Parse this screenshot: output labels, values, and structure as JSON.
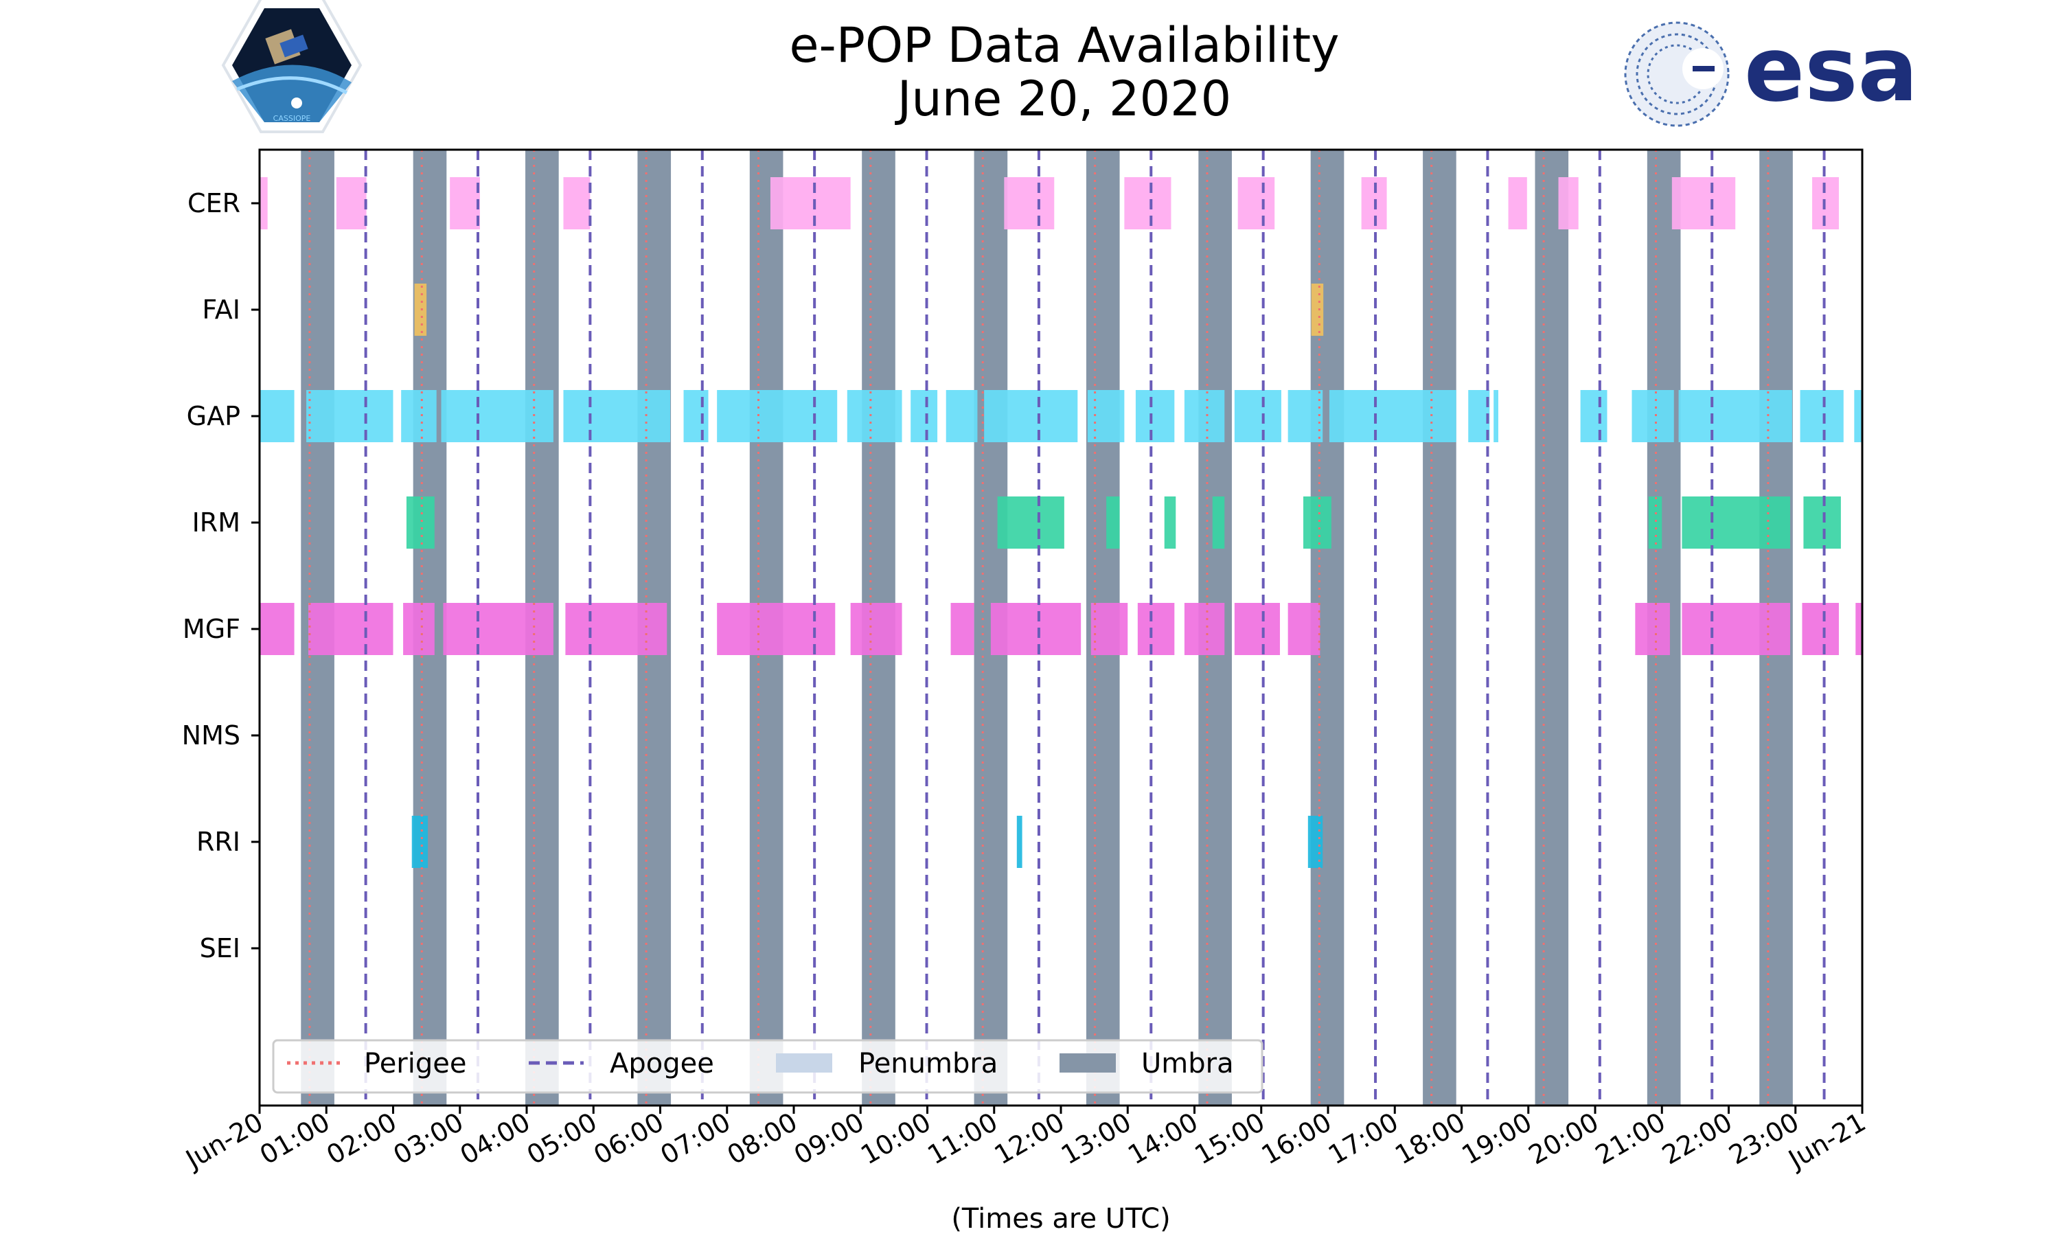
{
  "logos": {
    "left_mission": "CASSIOPE",
    "right_agency": "esa"
  },
  "chart_data": {
    "type": "timeline",
    "title": [
      "e-POP Data Availability",
      "June 20, 2020"
    ],
    "xlabel": "(Times are UTC)",
    "x_unit": "hours",
    "xlim": [
      0,
      24
    ],
    "x_ticks": [
      "Jun-20",
      "01:00",
      "02:00",
      "03:00",
      "04:00",
      "05:00",
      "06:00",
      "07:00",
      "08:00",
      "09:00",
      "10:00",
      "11:00",
      "12:00",
      "13:00",
      "14:00",
      "15:00",
      "16:00",
      "17:00",
      "18:00",
      "19:00",
      "20:00",
      "21:00",
      "22:00",
      "23:00",
      "Jun-21"
    ],
    "instruments": [
      "CER",
      "FAI",
      "GAP",
      "IRM",
      "MGF",
      "NMS",
      "RRI",
      "SEI"
    ],
    "colors": {
      "CER": "#ffaaf0",
      "FAI": "#f0c060",
      "GAP": "#66ddf8",
      "IRM": "#38d4a4",
      "MGF": "#f070e0",
      "NMS": "#999999",
      "RRI": "#20b8e0",
      "SEI": "#999999",
      "umbra": "#8595a7",
      "penumbra": "#c8d6e8",
      "perigee": "#f07070",
      "apogee": "#6a5cb8"
    },
    "umbra": [
      [
        0.62,
        1.12
      ],
      [
        2.3,
        2.8
      ],
      [
        3.98,
        4.48
      ],
      [
        5.66,
        6.16
      ],
      [
        7.34,
        7.84
      ],
      [
        9.02,
        9.52
      ],
      [
        10.7,
        11.2
      ],
      [
        12.38,
        12.88
      ],
      [
        14.06,
        14.56
      ],
      [
        15.74,
        16.24
      ],
      [
        17.42,
        17.92
      ],
      [
        19.1,
        19.6
      ],
      [
        20.78,
        21.28
      ],
      [
        22.46,
        22.96
      ]
    ],
    "perigee": [
      0.75,
      2.43,
      4.11,
      5.79,
      7.47,
      9.15,
      10.83,
      12.51,
      14.19,
      15.87,
      17.55,
      19.23,
      20.91,
      22.59
    ],
    "apogee": [
      1.59,
      3.27,
      4.95,
      6.63,
      8.31,
      9.99,
      11.67,
      13.35,
      15.03,
      16.71,
      18.39,
      20.07,
      21.75,
      23.43
    ],
    "intervals": {
      "CER": [
        [
          0,
          0.12
        ],
        [
          1.15,
          1.6
        ],
        [
          2.85,
          3.3
        ],
        [
          4.55,
          4.95
        ],
        [
          7.65,
          8.85
        ],
        [
          11.15,
          11.9
        ],
        [
          12.95,
          13.65
        ],
        [
          14.65,
          15.2
        ],
        [
          16.5,
          16.88
        ],
        [
          18.7,
          18.98
        ],
        [
          19.45,
          19.75
        ],
        [
          21.15,
          22.1
        ],
        [
          23.25,
          23.65
        ]
      ],
      "FAI": [
        [
          2.32,
          2.5
        ],
        [
          15.75,
          15.93
        ]
      ],
      "GAP": [
        [
          0,
          0.52
        ],
        [
          0.7,
          2.0
        ],
        [
          2.12,
          2.65
        ],
        [
          2.72,
          4.4
        ],
        [
          4.55,
          6.15
        ],
        [
          6.35,
          6.72
        ],
        [
          6.85,
          8.65
        ],
        [
          8.8,
          9.62
        ],
        [
          9.75,
          10.15
        ],
        [
          10.28,
          10.75
        ],
        [
          10.85,
          12.25
        ],
        [
          12.4,
          12.95
        ],
        [
          13.12,
          13.7
        ],
        [
          13.85,
          14.45
        ],
        [
          14.6,
          15.3
        ],
        [
          15.4,
          15.92
        ],
        [
          16.02,
          17.92
        ],
        [
          18.1,
          18.42
        ],
        [
          18.48,
          18.55
        ],
        [
          19.78,
          20.18
        ],
        [
          20.55,
          21.18
        ],
        [
          21.25,
          22.95
        ],
        [
          23.07,
          23.72
        ],
        [
          23.88,
          24.0
        ]
      ],
      "IRM": [
        [
          2.2,
          2.62
        ],
        [
          11.05,
          12.05
        ],
        [
          12.68,
          12.88
        ],
        [
          13.55,
          13.72
        ],
        [
          14.27,
          14.45
        ],
        [
          15.63,
          16.05
        ],
        [
          20.8,
          21.0
        ],
        [
          21.3,
          22.92
        ],
        [
          23.12,
          23.68
        ]
      ],
      "MGF": [
        [
          0,
          0.52
        ],
        [
          0.73,
          2.0
        ],
        [
          2.15,
          2.62
        ],
        [
          2.75,
          4.4
        ],
        [
          4.58,
          6.1
        ],
        [
          6.85,
          8.62
        ],
        [
          8.85,
          9.62
        ],
        [
          10.35,
          10.7
        ],
        [
          10.95,
          12.3
        ],
        [
          12.45,
          13.0
        ],
        [
          13.15,
          13.7
        ],
        [
          13.85,
          14.45
        ],
        [
          14.6,
          15.28
        ],
        [
          15.4,
          15.88
        ],
        [
          20.6,
          21.12
        ],
        [
          21.3,
          22.92
        ],
        [
          23.1,
          23.65
        ],
        [
          23.9,
          24.0
        ]
      ],
      "NMS": [],
      "RRI": [
        [
          2.28,
          2.52
        ],
        [
          11.34,
          11.42
        ],
        [
          15.7,
          15.92
        ]
      ],
      "SEI": []
    },
    "legend": [
      {
        "key": "perigee",
        "label": "Perigee"
      },
      {
        "key": "apogee",
        "label": "Apogee"
      },
      {
        "key": "penumbra",
        "label": "Penumbra"
      },
      {
        "key": "umbra",
        "label": "Umbra"
      }
    ],
    "legend_position": "lower-left"
  }
}
